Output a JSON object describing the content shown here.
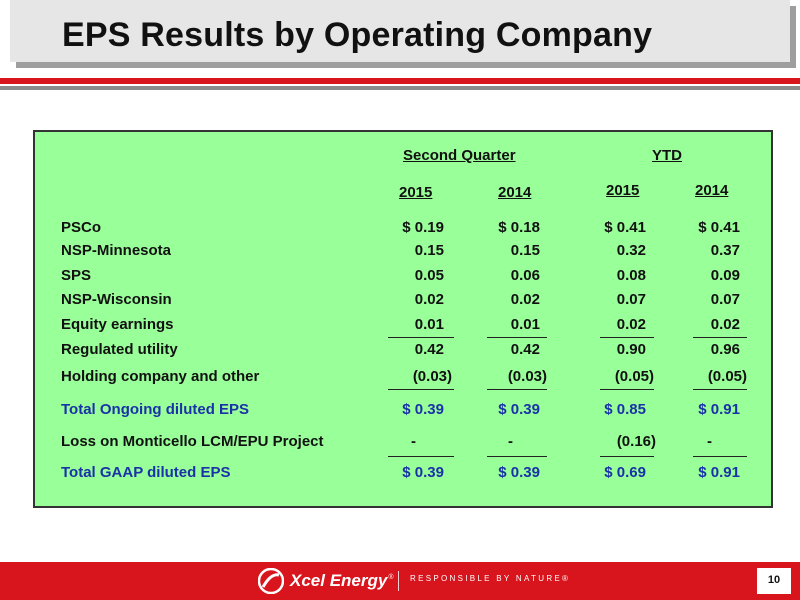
{
  "slide": {
    "title": "EPS Results by Operating Company",
    "page_number": "10"
  },
  "table": {
    "group_headers": {
      "q2": "Second Quarter",
      "ytd": "YTD"
    },
    "year_headers": [
      "2015",
      "2014",
      "2015",
      "2014"
    ],
    "rows": [
      {
        "label": "PSCo",
        "values": [
          "$ 0.19",
          "$ 0.18",
          "$ 0.41",
          "$ 0.41"
        ]
      },
      {
        "label": "NSP-Minnesota",
        "values": [
          "0.15",
          "0.15",
          "0.32",
          "0.37"
        ]
      },
      {
        "label": "SPS",
        "values": [
          "0.05",
          "0.06",
          "0.08",
          "0.09"
        ]
      },
      {
        "label": "NSP-Wisconsin",
        "values": [
          "0.02",
          "0.02",
          "0.07",
          "0.07"
        ]
      },
      {
        "label": "Equity earnings",
        "values": [
          "0.01",
          "0.01",
          "0.02",
          "0.02"
        ]
      },
      {
        "label": "Regulated utility",
        "values": [
          "0.42",
          "0.42",
          "0.90",
          "0.96"
        ]
      },
      {
        "label": "Holding company and other",
        "values": [
          "(0.03)",
          "(0.03)",
          "(0.05)",
          "(0.05)"
        ]
      },
      {
        "label": "Total Ongoing diluted EPS",
        "values": [
          "$ 0.39",
          "$ 0.39",
          "$ 0.85",
          "$ 0.91"
        ]
      },
      {
        "label": "Loss on Monticello LCM/EPU Project",
        "values": [
          "-",
          "-",
          "(0.16)",
          "-"
        ]
      },
      {
        "label": "Total GAAP diluted EPS",
        "values": [
          "$ 0.39",
          "$ 0.39",
          "$ 0.69",
          "$ 0.91"
        ]
      }
    ]
  },
  "footer": {
    "brand": "Xcel Energy",
    "registered_mark": "®",
    "tagline": "RESPONSIBLE BY NATURE®"
  },
  "colors": {
    "accent_red": "#d8141c",
    "panel_green": "#99ff99",
    "highlight_blue": "#1a32a8"
  }
}
